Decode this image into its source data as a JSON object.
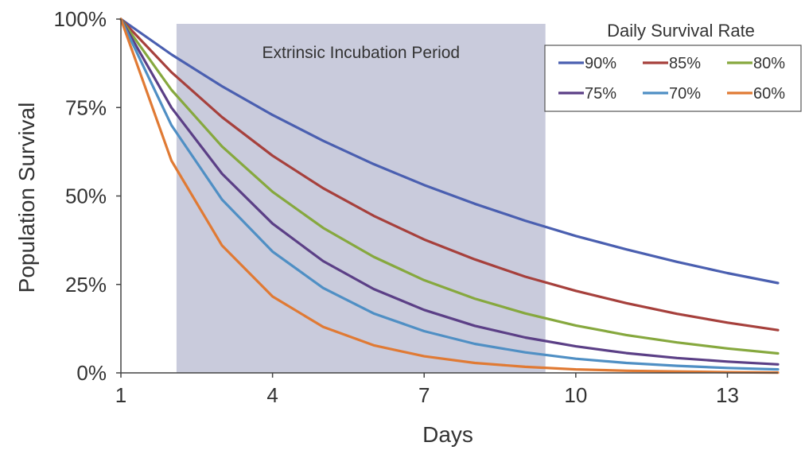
{
  "chart_data": {
    "type": "line",
    "xlabel": "Days",
    "ylabel": "Population Survival",
    "xlim": [
      1,
      14
    ],
    "ylim": [
      0,
      100
    ],
    "x_ticks": [
      1,
      4,
      7,
      10,
      13
    ],
    "x_tick_labels": [
      "1",
      "4",
      "7",
      "10",
      "13"
    ],
    "y_ticks": [
      0,
      25,
      50,
      75,
      100
    ],
    "y_tick_labels": [
      "0%",
      "25%",
      "50%",
      "75%",
      "100%"
    ],
    "grid": false,
    "legend": {
      "title": "Daily Survival Rate",
      "position": "top-right"
    },
    "shaded_region": {
      "label": "Extrinsic Incubation Period",
      "x_start": 2.1,
      "x_end": 9.4,
      "color": "#c9cbdc"
    },
    "x": [
      1,
      2,
      3,
      4,
      5,
      6,
      7,
      8,
      9,
      10,
      11,
      12,
      13,
      14
    ],
    "series": [
      {
        "name": "90%",
        "color": "#4a5fb0",
        "values": [
          100,
          90,
          81,
          72.9,
          65.6,
          59,
          53.1,
          47.8,
          43,
          38.7,
          34.9,
          31.4,
          28.2,
          25.4
        ]
      },
      {
        "name": "85%",
        "color": "#a6403c",
        "values": [
          100,
          85,
          72.3,
          61.4,
          52.2,
          44.4,
          37.7,
          32.1,
          27.2,
          23.2,
          19.7,
          16.7,
          14.2,
          12.1
        ]
      },
      {
        "name": "80%",
        "color": "#86a83e",
        "values": [
          100,
          80,
          64,
          51.2,
          41,
          32.8,
          26.2,
          21,
          16.8,
          13.4,
          10.7,
          8.6,
          6.9,
          5.5
        ]
      },
      {
        "name": "75%",
        "color": "#5b3f86",
        "values": [
          100,
          75,
          56.3,
          42.2,
          31.6,
          23.7,
          17.8,
          13.3,
          10,
          7.5,
          5.6,
          4.2,
          3.2,
          2.4
        ]
      },
      {
        "name": "70%",
        "color": "#4f8fc4",
        "values": [
          100,
          70,
          49,
          34.3,
          24,
          16.8,
          11.8,
          8.2,
          5.8,
          4,
          2.8,
          2,
          1.4,
          1
        ]
      },
      {
        "name": "60%",
        "color": "#e07a34",
        "values": [
          100,
          60,
          36,
          21.6,
          13,
          7.8,
          4.7,
          2.8,
          1.7,
          1,
          0.6,
          0.4,
          0.2,
          0.1
        ]
      }
    ]
  }
}
